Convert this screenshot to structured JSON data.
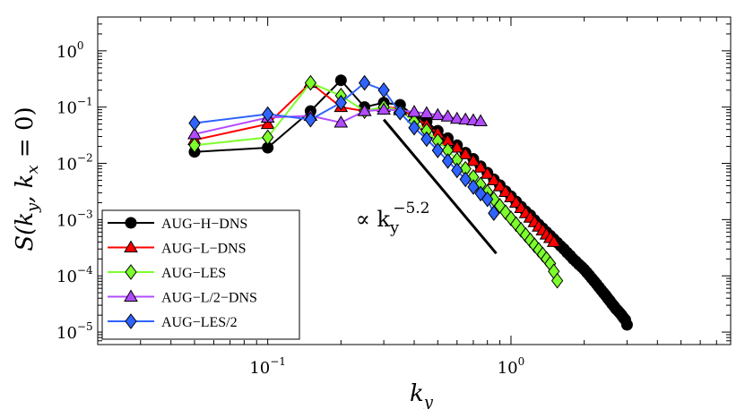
{
  "chart_data": {
    "type": "scatter",
    "scale": "log-log",
    "xlabel": "k_y",
    "ylabel": "S(k_y, k_x = 0)",
    "xlim": [
      0.02,
      8
    ],
    "ylim": [
      6e-06,
      4
    ],
    "x_ticks": [
      {
        "value": 0.1,
        "mant": "10",
        "exp": "−1"
      },
      {
        "value": 1,
        "mant": "10",
        "exp": "0"
      }
    ],
    "y_ticks": [
      {
        "value": 1,
        "mant": "10",
        "exp": "0"
      },
      {
        "value": 0.1,
        "mant": "10",
        "exp": "−1"
      },
      {
        "value": 0.01,
        "mant": "10",
        "exp": "−2"
      },
      {
        "value": 0.001,
        "mant": "10",
        "exp": "−3"
      },
      {
        "value": 0.0001,
        "mant": "10",
        "exp": "−4"
      },
      {
        "value": 1e-05,
        "mant": "10",
        "exp": "−5"
      }
    ],
    "annotation": {
      "prefix": "∝ k",
      "sub": "y",
      "sup": "−5.2",
      "anchor": [
        0.25,
        0.00075
      ],
      "line": {
        "x": [
          0.3,
          0.87
        ],
        "y": [
          0.06,
          0.00025
        ]
      }
    },
    "legend_position": "bottom-left",
    "series": [
      {
        "name": "AUG−H−DNS",
        "color": "#000000",
        "marker": "circle",
        "x": [
          0.05,
          0.1,
          0.15,
          0.2,
          0.25,
          0.3,
          0.35,
          0.4,
          0.45,
          0.5,
          0.55,
          0.6,
          0.65,
          0.7,
          0.75,
          0.8,
          0.85,
          0.9,
          0.95,
          1.0,
          1.05,
          1.1,
          1.15,
          1.2,
          1.25,
          1.3,
          1.35,
          1.4,
          1.45,
          1.5,
          1.55,
          1.6,
          1.65,
          1.7,
          1.75,
          1.8,
          1.85,
          1.9,
          1.95,
          2.0,
          2.05,
          2.1,
          2.15,
          2.2,
          2.25,
          2.3,
          2.35,
          2.4,
          2.45,
          2.5,
          2.55,
          2.6,
          2.65,
          2.7,
          2.75,
          2.8,
          2.85,
          2.9,
          2.95,
          3.0
        ],
        "y": [
          0.016,
          0.019,
          0.085,
          0.3,
          0.1,
          0.12,
          0.11,
          0.07,
          0.055,
          0.038,
          0.028,
          0.021,
          0.0155,
          0.012,
          0.0089,
          0.0068,
          0.0052,
          0.0041,
          0.0032,
          0.0026,
          0.0021,
          0.0017,
          0.0014,
          0.0012,
          0.00098,
          0.00082,
          0.0007,
          0.0006,
          0.00052,
          0.00045,
          0.00039,
          0.00034,
          0.0003,
          0.00026,
          0.00023,
          0.0002,
          0.00018,
          0.00016,
          0.000145,
          0.00013,
          0.000115,
          0.000102,
          9e-05,
          8e-05,
          7.1e-05,
          6.3e-05,
          5.6e-05,
          5e-05,
          4.5e-05,
          4e-05,
          3.6e-05,
          3.2e-05,
          2.9e-05,
          2.6e-05,
          2.4e-05,
          2.2e-05,
          2e-05,
          1.8e-05,
          1.65e-05,
          1.35e-05
        ]
      },
      {
        "name": "AUG−L−DNS",
        "color": "#ff0000",
        "marker": "triangle",
        "x": [
          0.05,
          0.1,
          0.15,
          0.2,
          0.25,
          0.3,
          0.35,
          0.4,
          0.45,
          0.5,
          0.55,
          0.6,
          0.65,
          0.7,
          0.75,
          0.8,
          0.85,
          0.9,
          0.95,
          1.0,
          1.05,
          1.1,
          1.15,
          1.2,
          1.25,
          1.3,
          1.35,
          1.4,
          1.45,
          1.5
        ],
        "y": [
          0.026,
          0.05,
          0.27,
          0.1,
          0.085,
          0.1,
          0.095,
          0.065,
          0.048,
          0.034,
          0.025,
          0.019,
          0.0145,
          0.011,
          0.0084,
          0.0065,
          0.005,
          0.0039,
          0.0031,
          0.0025,
          0.002,
          0.0016,
          0.0013,
          0.00108,
          0.0009,
          0.00075,
          0.00064,
          0.00054,
          0.00047,
          0.0004
        ]
      },
      {
        "name": "AUG−LES",
        "color": "#7dff2d",
        "marker": "diamond",
        "x": [
          0.05,
          0.1,
          0.15,
          0.2,
          0.25,
          0.3,
          0.35,
          0.4,
          0.45,
          0.5,
          0.55,
          0.6,
          0.65,
          0.7,
          0.75,
          0.8,
          0.85,
          0.9,
          0.95,
          1.0,
          1.05,
          1.1,
          1.15,
          1.2,
          1.25,
          1.3,
          1.35,
          1.4,
          1.45,
          1.5,
          1.55
        ],
        "y": [
          0.021,
          0.029,
          0.27,
          0.16,
          0.085,
          0.1,
          0.088,
          0.055,
          0.038,
          0.025,
          0.017,
          0.0115,
          0.008,
          0.0057,
          0.0042,
          0.0031,
          0.0023,
          0.00175,
          0.00135,
          0.00105,
          0.00083,
          0.00066,
          0.00053,
          0.00043,
          0.00035,
          0.00029,
          0.00024,
          0.0002,
          0.000165,
          0.00012,
          8.2e-05
        ]
      },
      {
        "name": "AUG−L/2−DNS",
        "color": "#b24bff",
        "marker": "triangle",
        "x": [
          0.05,
          0.1,
          0.15,
          0.2,
          0.25,
          0.3,
          0.35,
          0.4,
          0.45,
          0.5,
          0.55,
          0.6,
          0.65,
          0.7,
          0.75
        ],
        "y": [
          0.033,
          0.065,
          0.07,
          0.053,
          0.085,
          0.09,
          0.088,
          0.082,
          0.078,
          0.072,
          0.068,
          0.062,
          0.06,
          0.058,
          0.056
        ]
      },
      {
        "name": "AUG−LES/2",
        "color": "#2f63ff",
        "marker": "diamond",
        "x": [
          0.05,
          0.1,
          0.15,
          0.2,
          0.25,
          0.3,
          0.35,
          0.4,
          0.45,
          0.5,
          0.55,
          0.6,
          0.65,
          0.7,
          0.75,
          0.8,
          0.85
        ],
        "y": [
          0.052,
          0.075,
          0.06,
          0.12,
          0.27,
          0.2,
          0.08,
          0.043,
          0.027,
          0.017,
          0.011,
          0.0075,
          0.0052,
          0.0038,
          0.0029,
          0.0023,
          0.0013
        ]
      }
    ]
  }
}
